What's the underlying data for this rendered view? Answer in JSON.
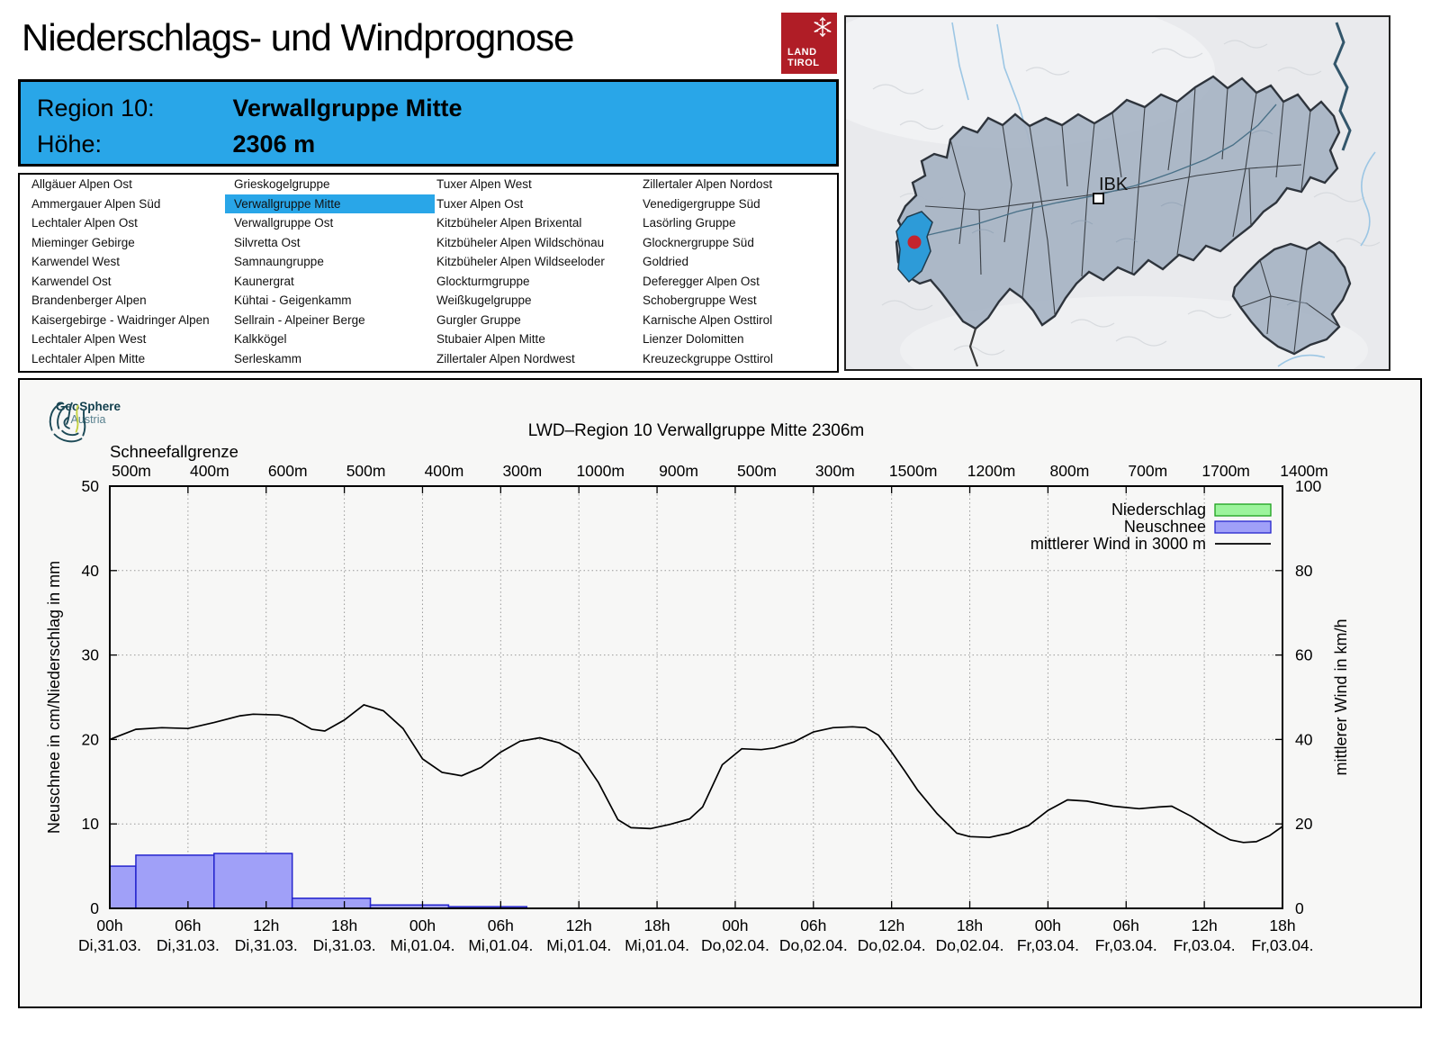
{
  "header": {
    "title": "Niederschlags- und Windprognose",
    "logo": {
      "line1": "LAND",
      "line2": "TIROL"
    }
  },
  "region_box": {
    "region_label": "Region 10:",
    "region_name": "Verwallgruppe Mitte",
    "altitude_label": "Höhe:",
    "altitude_value": "2306 m"
  },
  "region_list": {
    "selected": "Verwallgruppe Mitte",
    "columns": [
      [
        "Allgäuer Alpen Ost",
        "Ammergauer Alpen Süd",
        "Lechtaler Alpen Ost",
        "Mieminger Gebirge",
        "Karwendel West",
        "Karwendel Ost",
        "Brandenberger Alpen",
        "Kaisergebirge - Waidringer Alpen",
        "Lechtaler Alpen West",
        "Lechtaler Alpen Mitte"
      ],
      [
        "Grieskogelgruppe",
        "Verwallgruppe Mitte",
        "Verwallgruppe Ost",
        "Silvretta Ost",
        "Samnaungruppe",
        "Kaunergrat",
        "Kühtai - Geigenkamm",
        "Sellrain - Alpeiner Berge",
        "Kalkkögel",
        "Serleskamm"
      ],
      [
        "Tuxer Alpen West",
        "Tuxer Alpen Ost",
        "Kitzbüheler Alpen Brixental",
        "Kitzbüheler Alpen Wildschönau",
        "Kitzbüheler Alpen Wildseeloder",
        "Glockturmgruppe",
        "Weißkugelgruppe",
        "Gurgler Gruppe",
        "Stubaier Alpen Mitte",
        "Zillertaler Alpen Nordwest"
      ],
      [
        "Zillertaler Alpen Nordost",
        "Venedigergruppe Süd",
        "Lasörling Gruppe",
        "Glocknergruppe Süd",
        "Goldried",
        "Deferegger Alpen Ost",
        "Schobergruppe West",
        "Karnische Alpen Osttirol",
        "Lienzer Dolomitten",
        "Kreuzeckgruppe Osttirol"
      ]
    ]
  },
  "map": {
    "city_label": "IBK"
  },
  "geosphere_logo": {
    "name": "GeoSphere",
    "country": "Austria"
  },
  "colors": {
    "accent_blue": "#29a6e8",
    "logo_red": "#b01d26",
    "map_region_fill": "#a9b5c5",
    "map_highlight": "#2d9bd8",
    "map_marker_red": "#c4242e",
    "niederschlag_fill": "#9cf49c",
    "niederschlag_border": "#1ca01c",
    "neuschnee_fill": "#a0a0f8",
    "neuschnee_border": "#2525cd",
    "wind_line": "#000000",
    "grid": "#9a9a9a"
  },
  "chart_data": {
    "type": "bar+line",
    "title": "LWD–Region 10 Verwallgruppe Mitte 2306m",
    "snowline_label": "Schneefallgrenze",
    "snowline_values": [
      "500m",
      "400m",
      "600m",
      "500m",
      "400m",
      "300m",
      "1000m",
      "900m",
      "500m",
      "300m",
      "1500m",
      "1200m",
      "800m",
      "700m",
      "1700m",
      "1400m"
    ],
    "ylabel_left": "Neuschnee in cm/Niederschlag in mm",
    "ylabel_right": "mittlerer Wind in km/h",
    "ylim_left": [
      0,
      50
    ],
    "ylim_right": [
      0,
      100
    ],
    "yticks_left": [
      0,
      10,
      20,
      30,
      40,
      50
    ],
    "yticks_right": [
      0,
      20,
      40,
      60,
      80,
      100
    ],
    "grid": true,
    "legend_position": "top-right",
    "total_hours": 90,
    "x_ticks": [
      {
        "time": "00h",
        "date": "Di,31.03."
      },
      {
        "time": "06h",
        "date": "Di,31.03."
      },
      {
        "time": "12h",
        "date": "Di,31.03."
      },
      {
        "time": "18h",
        "date": "Di,31.03."
      },
      {
        "time": "00h",
        "date": "Mi,01.04."
      },
      {
        "time": "06h",
        "date": "Mi,01.04."
      },
      {
        "time": "12h",
        "date": "Mi,01.04."
      },
      {
        "time": "18h",
        "date": "Mi,01.04."
      },
      {
        "time": "00h",
        "date": "Do,02.04."
      },
      {
        "time": "06h",
        "date": "Do,02.04."
      },
      {
        "time": "12h",
        "date": "Do,02.04."
      },
      {
        "time": "18h",
        "date": "Do,02.04."
      },
      {
        "time": "00h",
        "date": "Fr,03.04."
      },
      {
        "time": "06h",
        "date": "Fr,03.04."
      },
      {
        "time": "12h",
        "date": "Fr,03.04."
      },
      {
        "time": "18h",
        "date": "Fr,03.04."
      }
    ],
    "legend": [
      {
        "label": "Niederschlag",
        "type": "box",
        "fill": "#9cf49c",
        "border": "#1ca01c"
      },
      {
        "label": "Neuschnee",
        "type": "box",
        "fill": "#a0a0f8",
        "border": "#2525cd"
      },
      {
        "label": "mittlerer Wind in 3000 m",
        "type": "line",
        "color": "#000000"
      }
    ],
    "neuschnee_bars_cm": [
      {
        "start_h": 0,
        "end_h": 2,
        "value": 5.0
      },
      {
        "start_h": 2,
        "end_h": 8,
        "value": 6.3
      },
      {
        "start_h": 8,
        "end_h": 14,
        "value": 6.5
      },
      {
        "start_h": 14,
        "end_h": 20,
        "value": 1.2
      },
      {
        "start_h": 20,
        "end_h": 26,
        "value": 0.4
      },
      {
        "start_h": 26,
        "end_h": 32,
        "value": 0.2
      }
    ],
    "niederschlag_bars_mm": [],
    "wind_line_kmh": {
      "x_hours": [
        0,
        2,
        4,
        6,
        8,
        10,
        11,
        13,
        14,
        15.5,
        16.5,
        18,
        19.5,
        21,
        22.5,
        24,
        25.5,
        27,
        28.5,
        30,
        31.5,
        33,
        34.5,
        36,
        37.5,
        39,
        40,
        41.5,
        43,
        44.5,
        45.5,
        47,
        48.5,
        50,
        51,
        52.5,
        54,
        55.5,
        57,
        58,
        59,
        60,
        61,
        62,
        63.5,
        65,
        66,
        67.5,
        69,
        70.5,
        72,
        73.5,
        75,
        77,
        79,
        80.5,
        81.5,
        83,
        84,
        85,
        86,
        87,
        88,
        89,
        90
      ],
      "values": [
        40,
        42.4,
        42.8,
        42.6,
        44,
        45.6,
        46,
        45.8,
        45,
        42.4,
        42,
        44.6,
        48.2,
        46.8,
        42.6,
        35.4,
        32.2,
        31.4,
        33.4,
        37,
        39.6,
        40.4,
        39.2,
        36.6,
        29.8,
        21,
        19.1,
        18.9,
        19.9,
        21.2,
        24,
        34,
        37.8,
        37.6,
        38,
        39.4,
        41.8,
        42.8,
        43,
        42.8,
        41,
        37,
        32.6,
        28,
        22.4,
        17.8,
        17,
        16.8,
        17.8,
        19.6,
        23.2,
        25.7,
        25.4,
        24.2,
        23.6,
        24,
        24.2,
        21.8,
        19.8,
        17.8,
        16.2,
        15.6,
        15.8,
        17.2,
        19.4
      ]
    }
  }
}
